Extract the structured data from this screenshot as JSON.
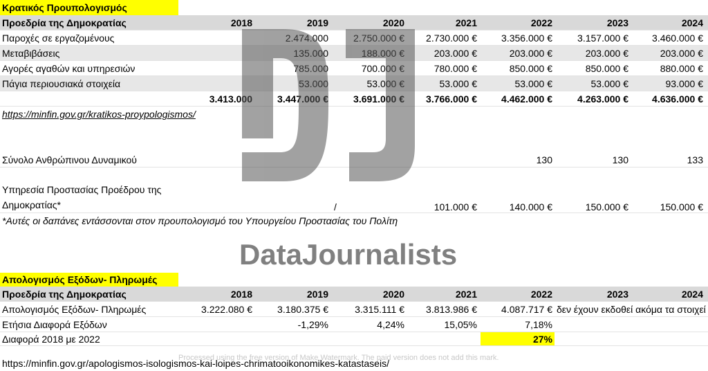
{
  "budget": {
    "title": "Κρατικός Προυπολογισμός",
    "header": [
      "Προεδρία της Δημοκρατίας",
      "2018",
      "2019",
      "2020",
      "2021",
      "2022",
      "2023",
      "2024"
    ],
    "rows": [
      [
        "Παροχές σε εργαζομένους",
        null,
        "2.474.000",
        "2.750.000 €",
        "2.730.000 €",
        "3.356.000 €",
        "3.157.000 €",
        "3.460.000 €"
      ],
      [
        "Μεταβιβάσεις",
        null,
        "135.000",
        "188.000 €",
        "203.000 €",
        "203.000 €",
        "203.000 €",
        "203.000 €"
      ],
      [
        "Αγορές αγαθών και υπηρεσιών",
        null,
        "785.000",
        "700.000 €",
        "780.000 €",
        "850.000 €",
        "850.000 €",
        "880.000 €"
      ],
      [
        "Πάγια περιουσιακά στοιχεία",
        null,
        "53.000",
        "53.000 €",
        "53.000 €",
        "53.000 €",
        "53.000 €",
        "93.000 €"
      ]
    ],
    "totals": [
      null,
      "3.413.000",
      "3.447.000 €",
      "3.691.000 €",
      "3.766.000 €",
      "4.462.000 €",
      "4.263.000 €",
      "4.636.000 €"
    ],
    "source": "https://minfin.gov.gr/kratikos-proypologismos/"
  },
  "staff": [
    [
      "Σύνολο Ανθρώπινου Δυναμικού",
      null,
      null,
      null,
      null,
      "130",
      "130",
      "133"
    ]
  ],
  "protection": [
    [
      "Υπηρεσία Προστασίας Προέδρου της Δημοκρατίας*",
      null,
      "/",
      null,
      "101.000 €",
      "140.000 €",
      "150.000 €",
      "150.000 €"
    ]
  ],
  "note": "*Αυτές οι δαπάνες εντάσσονται στον προυπολογισμό του Υπουργείου Προστασίας του Πολίτη",
  "payments": {
    "title": "Απολογισμός Εξόδων- Πληρωμές",
    "header": [
      "Προεδρία της Δημοκρατίας",
      "2018",
      "2019",
      "2020",
      "2021",
      "2022",
      "2023",
      "2024"
    ],
    "rows": [
      [
        "Απολογισμός Εξόδων- Πληρωμές",
        "3.222.080 €",
        "3.180.375 €",
        "3.315.111 €",
        "3.813.986 €",
        "4.087.717 €",
        "δεν έχουν εκδοθεί ακόμα τα στοιχεί",
        null
      ],
      [
        "Ετήσια Διαφορά Εξόδων",
        null,
        "-1,29%",
        "4,24%",
        "15,05%",
        "7,18%",
        null,
        null
      ],
      [
        "Διαφορά 2018 με 2022",
        null,
        null,
        null,
        null,
        "27%",
        null,
        null
      ]
    ],
    "source": "https://minfin.gov.gr/apologismos-isologismos-kai-loipes-chrimatooikonomikes-katastaseis/"
  },
  "watermark": {
    "brand": "DataJournalists",
    "notice": "Processed using the free version of Make Watermark. The paid version does not add this mark."
  }
}
